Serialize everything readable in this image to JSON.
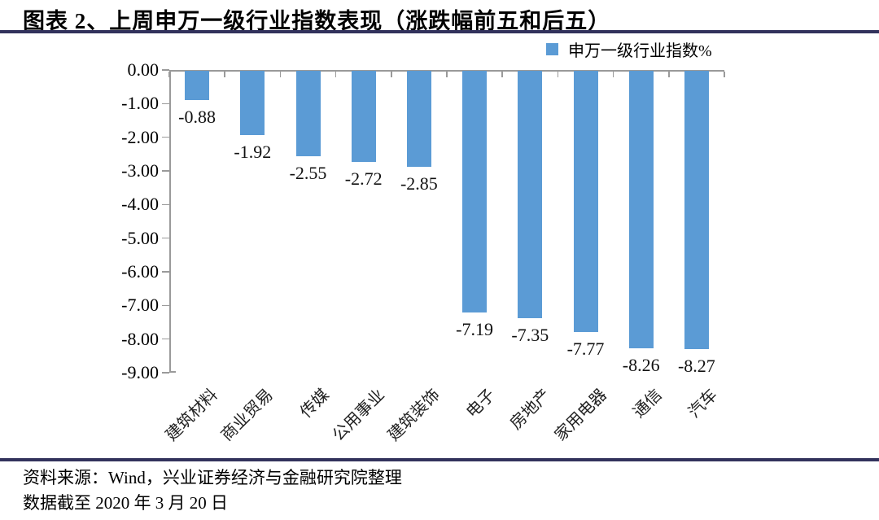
{
  "header": {
    "title": "图表 2、上周申万一级行业指数表现（涨跌幅前五和后五）"
  },
  "legend": {
    "label": "申万一级行业指数%"
  },
  "chart_data": {
    "type": "bar",
    "title": "上周申万一级行业指数表现（涨跌幅前五和后五）",
    "categories": [
      "建筑材料",
      "商业贸易",
      "传媒",
      "公用事业",
      "建筑装饰",
      "电子",
      "房地产",
      "家用电器",
      "通信",
      "汽车"
    ],
    "series": [
      {
        "name": "申万一级行业指数%",
        "values": [
          -0.88,
          -1.92,
          -2.55,
          -2.72,
          -2.85,
          -7.19,
          -7.35,
          -7.77,
          -8.26,
          -8.27
        ]
      }
    ],
    "value_labels": [
      "-0.88",
      "-1.92",
      "-2.55",
      "-2.72",
      "-2.85",
      "-7.19",
      "-7.35",
      "-7.77",
      "-8.26",
      "-8.27"
    ],
    "yticks": [
      "0.00",
      "-1.00",
      "-2.00",
      "-3.00",
      "-4.00",
      "-5.00",
      "-6.00",
      "-7.00",
      "-8.00",
      "-9.00"
    ],
    "ylim": [
      -9,
      0
    ],
    "xlabel": "",
    "ylabel": "",
    "grid": false,
    "legend_position": "top-right",
    "colors": {
      "bar": "#5B9BD5",
      "axis": "#9A9A9A",
      "rule": "#32325C",
      "text": "#000000"
    }
  },
  "footer": {
    "source_line": "资料来源：Wind，兴业证券经济与金融研究院整理",
    "date_line": "数据截至 2020 年 3 月 20 日"
  }
}
